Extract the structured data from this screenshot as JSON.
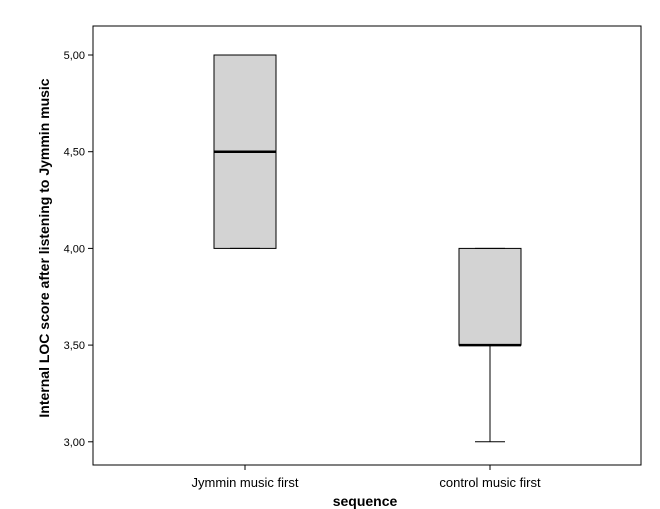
{
  "chart_data": {
    "type": "boxplot",
    "xlabel": "sequence",
    "ylabel": "Internal LOC score after listening to Jymmin music",
    "ylim": [
      2.88,
      5.15
    ],
    "yticks": [
      3.0,
      3.5,
      4.0,
      4.5,
      5.0
    ],
    "ytick_labels": [
      "3,00",
      "3,50",
      "4,00",
      "4,50",
      "5,00"
    ],
    "categories": [
      "Jymmin music first",
      "control music first"
    ],
    "boxes": [
      {
        "category": "Jymmin music first",
        "min": 4.0,
        "q1": 4.0,
        "median": 4.5,
        "q3": 5.0,
        "max": 5.0
      },
      {
        "category": "control music first",
        "min": 3.0,
        "q1": 3.5,
        "median": 3.5,
        "q3": 4.0,
        "max": 4.0
      }
    ],
    "grid": false,
    "legend": "none",
    "colors": {
      "box_fill": "#d3d3d3",
      "box_stroke": "#000000",
      "frame_stroke": "#000000"
    }
  }
}
